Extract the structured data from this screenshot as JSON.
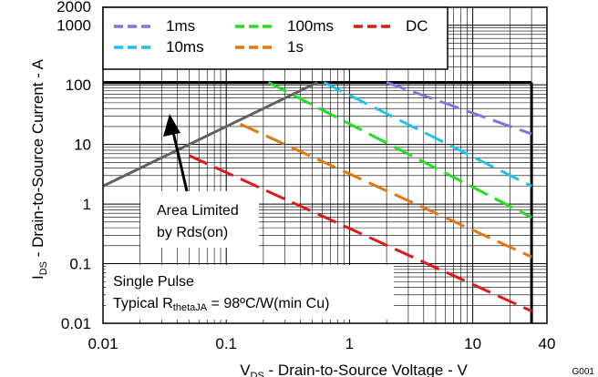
{
  "chart_data": {
    "type": "line",
    "title": "",
    "xlabel": "V_DS - Drain-to-Source Voltage - V",
    "ylabel": "I_DS - Drain-to-Source Current - A",
    "xlabel_parts": {
      "main": "V",
      "sub": "DS",
      "rest": " - Drain-to-Source Voltage - V"
    },
    "ylabel_parts": {
      "main": "I",
      "sub": "DS",
      "rest": " - Drain-to-Source Current - A"
    },
    "xscale": "log",
    "yscale": "log",
    "xlim": [
      0.01,
      40
    ],
    "ylim": [
      0.01,
      2000
    ],
    "grid": true,
    "legend_position": "top",
    "x_ticks": [
      {
        "value": 0.01,
        "label": "0.01"
      },
      {
        "value": 0.1,
        "label": "0.1"
      },
      {
        "value": 1,
        "label": "1"
      },
      {
        "value": 10,
        "label": "10"
      },
      {
        "value": 40,
        "label": "40"
      }
    ],
    "y_ticks": [
      {
        "value": 0.01,
        "label": "0.01"
      },
      {
        "value": 0.1,
        "label": "0.1"
      },
      {
        "value": 1,
        "label": "1"
      },
      {
        "value": 10,
        "label": "10"
      },
      {
        "value": 100,
        "label": "100"
      },
      {
        "value": 1000,
        "label": "1000"
      },
      {
        "value": 2000,
        "label": "2000"
      }
    ],
    "limits": {
      "current_limit_A": 110,
      "voltage_limit_V": 30
    },
    "series": [
      {
        "name": "Rds(on) limit",
        "color": "#606060",
        "style": "solid",
        "points": [
          [
            0.01,
            2.0
          ],
          [
            0.55,
            110
          ]
        ]
      },
      {
        "name": "1ms",
        "color": "#8a6fe0",
        "style": "dashed",
        "points": [
          [
            2.0,
            110
          ],
          [
            30,
            15
          ]
        ]
      },
      {
        "name": "10ms",
        "color": "#22c0ee",
        "style": "dashed",
        "points": [
          [
            0.62,
            110
          ],
          [
            30,
            2.0
          ]
        ]
      },
      {
        "name": "100ms",
        "color": "#22dd22",
        "style": "dashed",
        "points": [
          [
            0.22,
            110
          ],
          [
            30,
            0.6
          ]
        ]
      },
      {
        "name": "1s",
        "color": "#e07a10",
        "style": "dashed",
        "points": [
          [
            0.13,
            22
          ],
          [
            30,
            0.13
          ]
        ]
      },
      {
        "name": "DC",
        "color": "#e01a1a",
        "style": "dashed",
        "points": [
          [
            0.05,
            6.5
          ],
          [
            30,
            0.016
          ]
        ]
      }
    ],
    "annotations": [
      {
        "id": "area_limited",
        "text1": "Area Limited",
        "text2": "by Rds(on)"
      },
      {
        "id": "single_pulse",
        "text1": "Single Pulse",
        "text2_main": "Typical R",
        "text2_sub": "thetaJA",
        "text2_rest": " = 98ºC/W(min Cu)"
      }
    ],
    "figure_id": "G001"
  }
}
